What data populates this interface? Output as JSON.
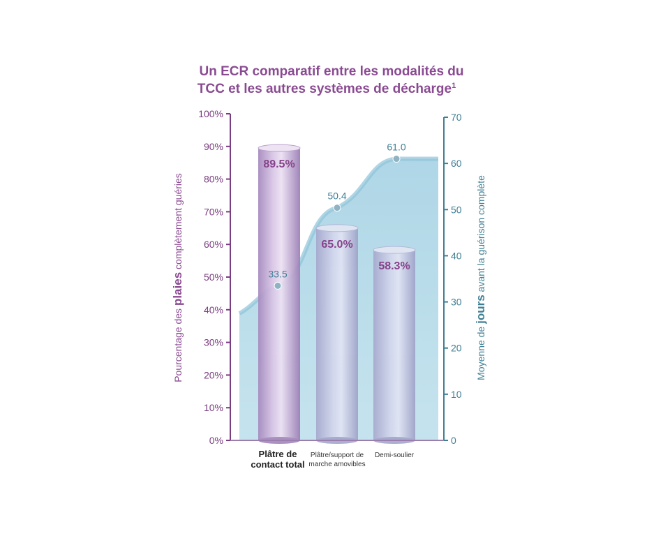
{
  "chart_data": {
    "type": "bar",
    "title_line1": "Un ECR comparatif entre les modalités du",
    "title_line2": "TCC et les autres systèmes de décharge",
    "title_sup": "1",
    "categories": [
      {
        "lines": [
          "Plâtre de",
          "contact total"
        ],
        "bold": true
      },
      {
        "lines": [
          "Plâtre/support de",
          "marche amovibles"
        ],
        "bold": false
      },
      {
        "lines": [
          "Demi-soulier"
        ],
        "bold": false
      }
    ],
    "bar_series": {
      "values": [
        89.5,
        65.0,
        58.3
      ],
      "labels": [
        "89.5%",
        "65.0%",
        "58.3%"
      ]
    },
    "line_series": {
      "values": [
        33.5,
        50.4,
        61.0
      ],
      "labels": [
        "33.5",
        "50.4",
        "61.0"
      ]
    },
    "ylabel_left": {
      "pre": "Pourcentage des ",
      "emph": "plaies",
      "post": " complètement guéries"
    },
    "ylabel_right": {
      "pre": "Moyenne de ",
      "emph": "jours",
      "post": " avant la guérison complète"
    },
    "ylim_left": [
      0,
      100
    ],
    "ylim_right": [
      0,
      70
    ],
    "left_ticks": [
      "0%",
      "10%",
      "20%",
      "30%",
      "40%",
      "50%",
      "60%",
      "70%",
      "80%",
      "90%",
      "100%"
    ],
    "right_ticks": [
      "0",
      "10",
      "20",
      "30",
      "40",
      "50",
      "60",
      "70"
    ],
    "grid": false,
    "colors": {
      "bar": "#c5a8d6",
      "bar_dark": "#a98bbf",
      "area": "#a9d3e4",
      "left_axis": "#7a3c80",
      "right_axis": "#3f7f94"
    }
  }
}
